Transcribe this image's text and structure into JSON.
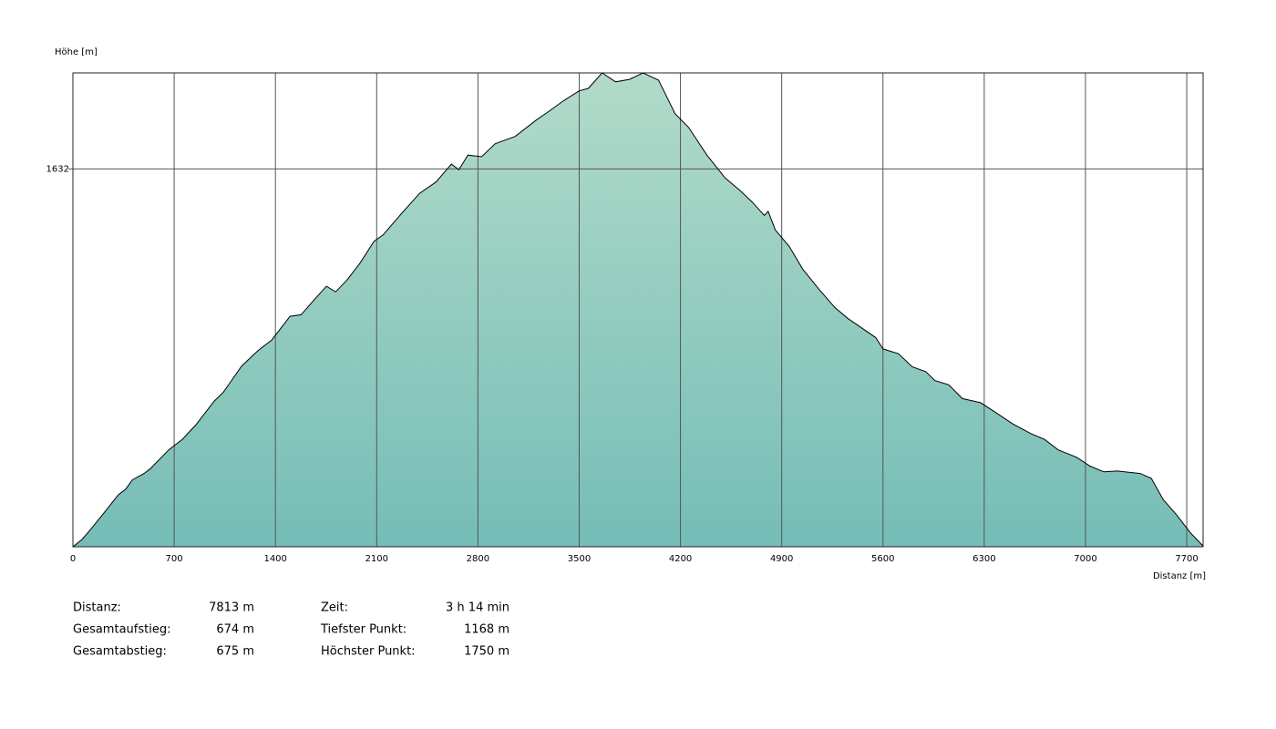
{
  "chart_data": {
    "type": "area",
    "y_label": "Höhe [m]",
    "x_label": "Distanz [m]",
    "xlim": [
      0,
      7813
    ],
    "ylim": [
      1168,
      1750
    ],
    "xticks": [
      0,
      700,
      1400,
      2100,
      2800,
      3500,
      4200,
      4900,
      5600,
      6300,
      7000,
      7700
    ],
    "yticks": [
      1632
    ],
    "grid": true,
    "fill_colors": [
      "#b2dbc9",
      "#75bdb7"
    ],
    "line_color": "#000000",
    "x": [
      0,
      63,
      126,
      221,
      315,
      366,
      410,
      492,
      536,
      662,
      757,
      851,
      977,
      1041,
      1167,
      1280,
      1375,
      1501,
      1577,
      1671,
      1753,
      1816,
      1892,
      1987,
      2081,
      2144,
      2270,
      2396,
      2510,
      2617,
      2668,
      2731,
      2825,
      2920,
      3058,
      3203,
      3292,
      3393,
      3500,
      3563,
      3658,
      3752,
      3847,
      3942,
      4049,
      4162,
      4257,
      4383,
      4509,
      4616,
      4698,
      4780,
      4806,
      4856,
      4951,
      5045,
      5159,
      5266,
      5360,
      5550,
      5600,
      5707,
      5802,
      5896,
      5960,
      6054,
      6149,
      6275,
      6370,
      6496,
      6622,
      6716,
      6811,
      6937,
      7032,
      7126,
      7221,
      7379,
      7455,
      7537,
      7631,
      7726,
      7813
    ],
    "values": [
      1168,
      1177,
      1190,
      1211,
      1232,
      1239,
      1250,
      1258,
      1264,
      1287,
      1300,
      1318,
      1347,
      1358,
      1390,
      1409,
      1422,
      1451,
      1453,
      1472,
      1488,
      1481,
      1495,
      1517,
      1543,
      1551,
      1577,
      1602,
      1616,
      1638,
      1631,
      1649,
      1647,
      1663,
      1672,
      1692,
      1703,
      1716,
      1728,
      1731,
      1750,
      1739,
      1742,
      1750,
      1741,
      1700,
      1683,
      1649,
      1621,
      1605,
      1591,
      1575,
      1580,
      1557,
      1537,
      1509,
      1484,
      1462,
      1448,
      1425,
      1411,
      1405,
      1389,
      1383,
      1372,
      1367,
      1350,
      1345,
      1334,
      1319,
      1307,
      1300,
      1287,
      1278,
      1267,
      1260,
      1261,
      1258,
      1252,
      1226,
      1207,
      1185,
      1169
    ],
    "stats": [
      {
        "label": "Distanz:",
        "value": "7813 m"
      },
      {
        "label": "Gesamtaufstieg:",
        "value": "674 m"
      },
      {
        "label": "Gesamtabstieg:",
        "value": "675 m"
      },
      {
        "label": "Zeit:",
        "value": "3 h 14 min"
      },
      {
        "label": "Tiefster Punkt:",
        "value": "1168 m"
      },
      {
        "label": "Höchster Punkt:",
        "value": "1750 m"
      }
    ]
  }
}
